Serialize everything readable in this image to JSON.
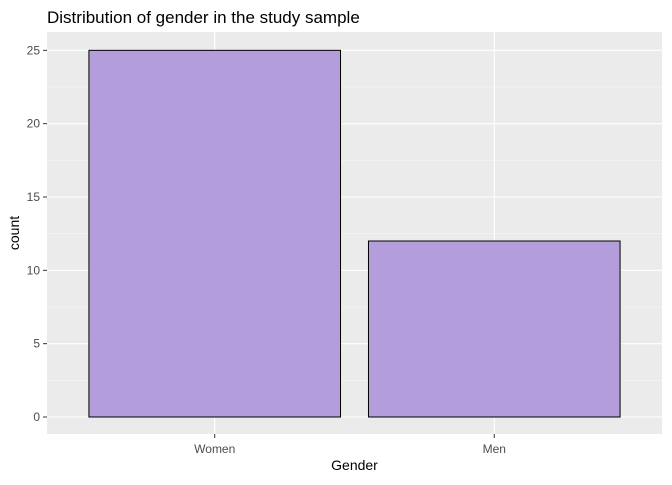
{
  "chart_data": {
    "type": "bar",
    "title": "Distribution of gender in the study sample",
    "xlabel": "Gender",
    "ylabel": "count",
    "categories": [
      "Women",
      "Men"
    ],
    "values": [
      25,
      12
    ],
    "ylim": [
      0,
      26.25
    ],
    "yticks": [
      0,
      5,
      10,
      15,
      20,
      25
    ],
    "grid": true,
    "legend": "none",
    "colors": {
      "panel_background": "#ebebeb",
      "grid_major": "#ffffff",
      "grid_minor": "#f5f5f5",
      "bar_fill": "#b39ddb",
      "bar_stroke": "#000000"
    }
  }
}
